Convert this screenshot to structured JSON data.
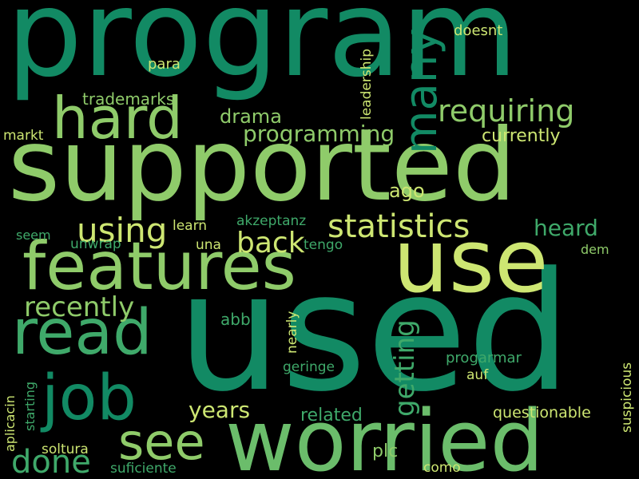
{
  "palette": {
    "background": "#000000",
    "dark_green": "#128a64",
    "medium_green": "#3fa96a",
    "light_green": "#8fcb6a",
    "yellow_green": "#cde672"
  },
  "words": [
    {
      "text": "program",
      "color": "#128a64"
    },
    {
      "text": "supported",
      "color": "#8fcb6a"
    },
    {
      "text": "used",
      "color": "#128a64"
    },
    {
      "text": "use",
      "color": "#cde672"
    },
    {
      "text": "worried",
      "color": "#6bbd6b"
    },
    {
      "text": "features",
      "color": "#8fcb6a"
    },
    {
      "text": "hard",
      "color": "#8fcb6a"
    },
    {
      "text": "read",
      "color": "#3fa96a"
    },
    {
      "text": "job",
      "color": "#128a64"
    },
    {
      "text": "many",
      "color": "#128a64"
    },
    {
      "text": "requiring",
      "color": "#8fcb6a"
    },
    {
      "text": "see",
      "color": "#8fcb6a"
    },
    {
      "text": "statistics",
      "color": "#cde672"
    },
    {
      "text": "using",
      "color": "#cde672"
    },
    {
      "text": "back",
      "color": "#cde672"
    },
    {
      "text": "done",
      "color": "#3fa96a"
    },
    {
      "text": "recently",
      "color": "#8fcb6a"
    },
    {
      "text": "getting",
      "color": "#3fa96a"
    },
    {
      "text": "programming",
      "color": "#8fcb6a"
    },
    {
      "text": "years",
      "color": "#cde672"
    },
    {
      "text": "heard",
      "color": "#3fa96a"
    },
    {
      "text": "ago",
      "color": "#cde672"
    },
    {
      "text": "drama",
      "color": "#8fcb6a"
    },
    {
      "text": "currently",
      "color": "#cde672"
    },
    {
      "text": "trademarks",
      "color": "#8fcb6a"
    },
    {
      "text": "related",
      "color": "#3fa96a"
    },
    {
      "text": "plc",
      "color": "#8fcb6a"
    },
    {
      "text": "questionable",
      "color": "#cde672"
    },
    {
      "text": "progarmar",
      "color": "#3fa96a"
    },
    {
      "text": "abb",
      "color": "#3fa96a"
    },
    {
      "text": "doesnt",
      "color": "#cde672"
    },
    {
      "text": "para",
      "color": "#cde672"
    },
    {
      "text": "leadership",
      "color": "#cde672"
    },
    {
      "text": "markt",
      "color": "#cde672"
    },
    {
      "text": "akzeptanz",
      "color": "#3fa96a"
    },
    {
      "text": "learn",
      "color": "#cde672"
    },
    {
      "text": "seem",
      "color": "#3fa96a"
    },
    {
      "text": "unwrap",
      "color": "#3fa96a"
    },
    {
      "text": "una",
      "color": "#cde672"
    },
    {
      "text": "tengo",
      "color": "#3fa96a"
    },
    {
      "text": "dem",
      "color": "#8fcb6a"
    },
    {
      "text": "nearly",
      "color": "#cde672"
    },
    {
      "text": "geringe",
      "color": "#3fa96a"
    },
    {
      "text": "auf",
      "color": "#cde672"
    },
    {
      "text": "suspicious",
      "color": "#cde672"
    },
    {
      "text": "aplicacin",
      "color": "#cde672"
    },
    {
      "text": "starting",
      "color": "#3fa96a"
    },
    {
      "text": "soltura",
      "color": "#cde672"
    },
    {
      "text": "suficiente",
      "color": "#3fa96a"
    },
    {
      "text": "como",
      "color": "#cde672"
    }
  ]
}
